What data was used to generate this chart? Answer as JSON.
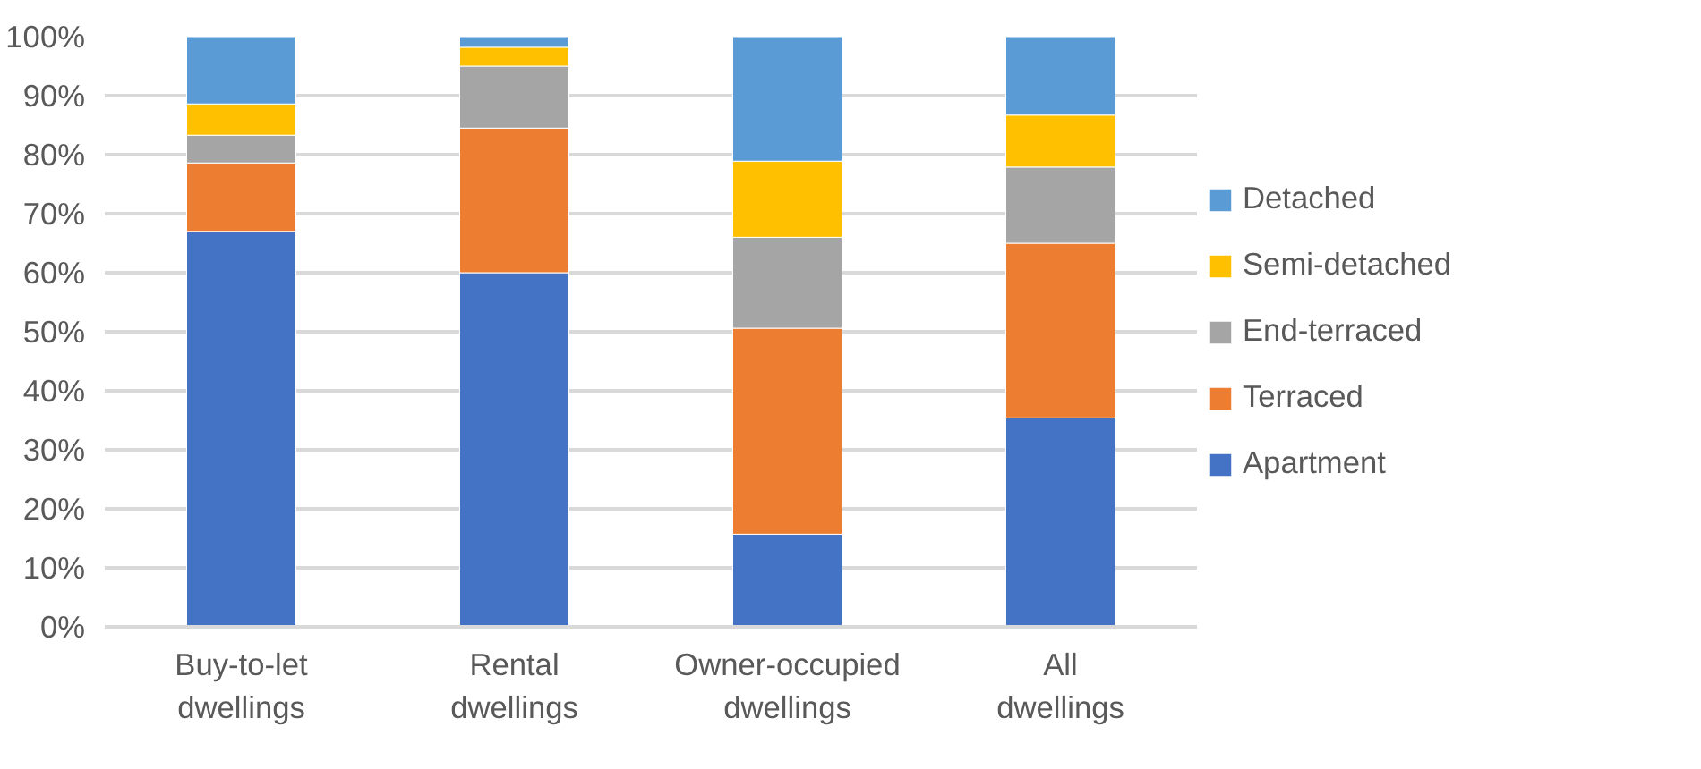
{
  "chart_data": {
    "type": "bar",
    "stacked": true,
    "categories": [
      "Buy-to-let dwellings",
      "Rental dwellings",
      "Owner-occupied dwellings",
      "All dwellings"
    ],
    "series": [
      {
        "name": "Apartment",
        "color": "#4472c4",
        "values": [
          67,
          60,
          15.7,
          35.4
        ]
      },
      {
        "name": "Terraced",
        "color": "#ed7d31",
        "values": [
          11.6,
          24.5,
          34.9,
          29.6
        ]
      },
      {
        "name": "End-terraced",
        "color": "#a5a5a5",
        "values": [
          4.7,
          10.5,
          15.4,
          12.9
        ]
      },
      {
        "name": "Semi-detached",
        "color": "#ffc000",
        "values": [
          5.3,
          3.2,
          12.9,
          8.8
        ]
      },
      {
        "name": "Detached",
        "color": "#5b9bd5",
        "values": [
          11.4,
          1.8,
          21.1,
          13.3
        ]
      }
    ],
    "ylim": [
      0,
      100
    ],
    "yticks": [
      {
        "value": 0,
        "label": "0%"
      },
      {
        "value": 10,
        "label": "10%"
      },
      {
        "value": 20,
        "label": "20%"
      },
      {
        "value": 30,
        "label": "30%"
      },
      {
        "value": 40,
        "label": "40%"
      },
      {
        "value": 50,
        "label": "50%"
      },
      {
        "value": 60,
        "label": "60%"
      },
      {
        "value": 70,
        "label": "70%"
      },
      {
        "value": 80,
        "label": "80%"
      },
      {
        "value": 90,
        "label": "90%"
      },
      {
        "value": 100,
        "label": "100%"
      }
    ],
    "grid": "y",
    "legend": "right"
  }
}
